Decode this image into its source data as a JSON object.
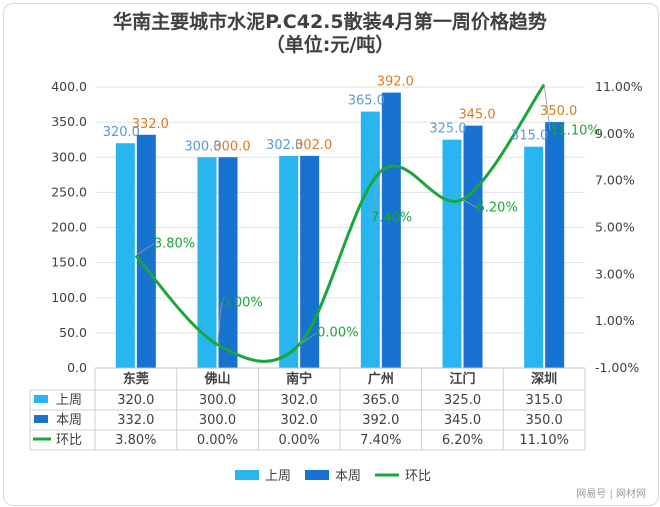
{
  "chart_data": {
    "type": "bar",
    "title": "华南主要城市水泥P.C42.5散装4月第一周价格趋势",
    "subtitle": "（单位:元/吨）",
    "categories": [
      "东莞",
      "佛山",
      "南宁",
      "广州",
      "江门",
      "深圳"
    ],
    "ylim": [
      0,
      400
    ],
    "yticks": [
      "0.0",
      "50.0",
      "100.0",
      "150.0",
      "200.0",
      "250.0",
      "300.0",
      "350.0",
      "400.0"
    ],
    "y2lim": [
      -1,
      11
    ],
    "y2ticks": [
      "-1.00%",
      "1.00%",
      "3.00%",
      "5.00%",
      "7.00%",
      "9.00%",
      "11.00%"
    ],
    "series": [
      {
        "name": "上周",
        "type": "bar",
        "color": "#29b6f0",
        "values": [
          320.0,
          300.0,
          302.0,
          365.0,
          325.0,
          315.0
        ],
        "labels": [
          "320.0",
          "300.0",
          "302.0",
          "365.0",
          "325.0",
          "315.0"
        ],
        "label_color": "#5b9bd5"
      },
      {
        "name": "本周",
        "type": "bar",
        "color": "#1772d0",
        "values": [
          332.0,
          300.0,
          302.0,
          392.0,
          345.0,
          350.0
        ],
        "labels": [
          "332.0",
          "300.0",
          "302.0",
          "392.0",
          "345.0",
          "350.0"
        ],
        "label_color": "#e07b22"
      },
      {
        "name": "环比",
        "type": "line",
        "axis": "right",
        "color": "#1aa63a",
        "values": [
          3.8,
          0.0,
          0.0,
          7.4,
          6.2,
          11.1
        ],
        "labels": [
          "3.80%",
          "0.00%",
          "0.00%",
          "7.40%",
          "6.20%",
          "11.10%"
        ],
        "label_color": "#1aa63a"
      }
    ],
    "table": {
      "rows": [
        {
          "name": "上周",
          "cells": [
            "320.0",
            "300.0",
            "302.0",
            "365.0",
            "325.0",
            "315.0"
          ]
        },
        {
          "name": "本周",
          "cells": [
            "332.0",
            "300.0",
            "302.0",
            "392.0",
            "345.0",
            "350.0"
          ]
        },
        {
          "name": "环比",
          "cells": [
            "3.80%",
            "0.00%",
            "0.00%",
            "7.40%",
            "6.20%",
            "11.10%"
          ]
        }
      ]
    },
    "legend": {
      "placement": "bottom",
      "items": [
        "上周",
        "本周",
        "环比"
      ]
    },
    "watermark": "网易号 | 网材网"
  }
}
